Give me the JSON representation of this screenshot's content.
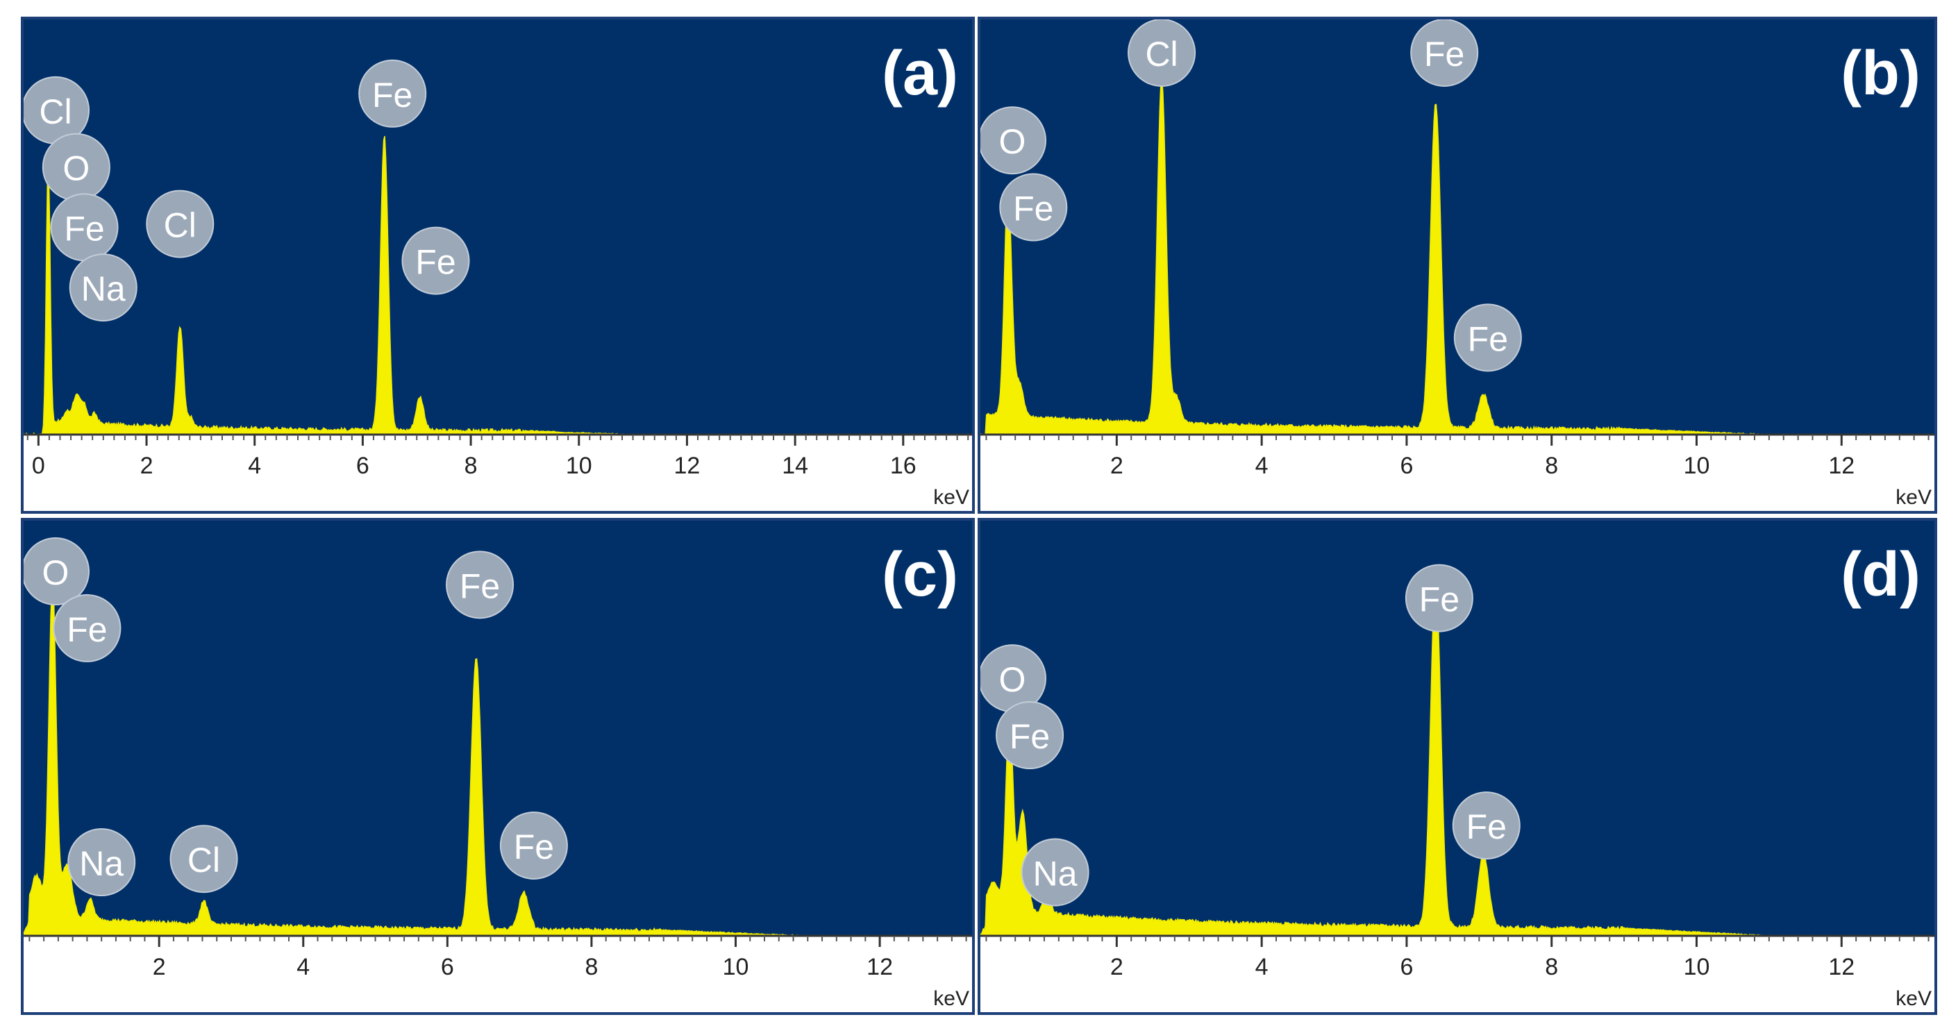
{
  "chart_data": [
    {
      "type": "area",
      "panel_label": "(a)",
      "xlabel": "keV",
      "xlim": [
        -0.3,
        17.3
      ],
      "xticks": [
        0,
        2,
        4,
        6,
        8,
        10,
        12,
        14,
        16
      ],
      "ylim": [
        0,
        100
      ],
      "baseline": 1.0,
      "peaks": [
        {
          "center": 0.18,
          "height": 82,
          "width": 0.035
        },
        {
          "center": 0.52,
          "height": 3,
          "width": 0.05
        },
        {
          "center": 0.7,
          "height": 8,
          "width": 0.07
        },
        {
          "center": 0.85,
          "height": 5,
          "width": 0.06
        },
        {
          "center": 1.04,
          "height": 3,
          "width": 0.05
        },
        {
          "center": 2.62,
          "height": 30,
          "width": 0.06
        },
        {
          "center": 2.81,
          "height": 3,
          "width": 0.05
        },
        {
          "center": 6.4,
          "height": 88,
          "width": 0.07
        },
        {
          "center": 7.06,
          "height": 10,
          "width": 0.07
        }
      ],
      "labels": [
        {
          "text": "Cl",
          "x": 0.18,
          "level": 97
        },
        {
          "text": "O",
          "x": 0.7,
          "level": 80
        },
        {
          "text": "Fe",
          "x": 0.85,
          "level": 62
        },
        {
          "text": "Na",
          "x": 1.2,
          "level": 44
        },
        {
          "text": "Cl",
          "x": 2.62,
          "level": 63
        },
        {
          "text": "Fe",
          "x": 6.55,
          "level": 102
        },
        {
          "text": "Fe",
          "x": 7.35,
          "level": 52
        }
      ]
    },
    {
      "type": "area",
      "panel_label": "(b)",
      "xlabel": "keV",
      "xlim": [
        0.1,
        13.3
      ],
      "xticks": [
        2,
        4,
        6,
        8,
        10,
        12
      ],
      "ylim": [
        0,
        100
      ],
      "baseline": 1.5,
      "peaks": [
        {
          "center": 0.5,
          "height": 68,
          "width": 0.05
        },
        {
          "center": 0.65,
          "height": 10,
          "width": 0.06
        },
        {
          "center": 2.62,
          "height": 103,
          "width": 0.06
        },
        {
          "center": 2.82,
          "height": 8,
          "width": 0.06
        },
        {
          "center": 6.4,
          "height": 97,
          "width": 0.07
        },
        {
          "center": 7.06,
          "height": 10,
          "width": 0.07
        }
      ],
      "labels": [
        {
          "text": "O",
          "x": 0.45,
          "level": 88
        },
        {
          "text": "Fe",
          "x": 0.85,
          "level": 68
        },
        {
          "text": "Cl",
          "x": 2.62,
          "level": 128
        },
        {
          "text": "Fe",
          "x": 6.52,
          "level": 118
        },
        {
          "text": "Fe",
          "x": 7.12,
          "level": 29
        }
      ]
    },
    {
      "type": "area",
      "panel_label": "(c)",
      "xlabel": "keV",
      "xlim": [
        0.1,
        13.3
      ],
      "xticks": [
        2,
        4,
        6,
        8,
        10,
        12
      ],
      "ylim": [
        0,
        100
      ],
      "baseline": 1.5,
      "peaks": [
        {
          "center": 0.52,
          "height": 100,
          "width": 0.05
        },
        {
          "center": 0.72,
          "height": 16,
          "width": 0.07
        },
        {
          "center": 0.3,
          "height": 12,
          "width": 0.08
        },
        {
          "center": 1.04,
          "height": 6,
          "width": 0.05
        },
        {
          "center": 2.62,
          "height": 7,
          "width": 0.05
        },
        {
          "center": 6.4,
          "height": 81,
          "width": 0.07
        },
        {
          "center": 7.06,
          "height": 11,
          "width": 0.07
        }
      ],
      "labels": [
        {
          "text": "O",
          "x": 0.45,
          "level": 109
        },
        {
          "text": "Fe",
          "x": 1.0,
          "level": 92
        },
        {
          "text": "Na",
          "x": 1.2,
          "level": 22
        },
        {
          "text": "Cl",
          "x": 2.62,
          "level": 23
        },
        {
          "text": "Fe",
          "x": 6.45,
          "level": 105
        },
        {
          "text": "Fe",
          "x": 7.2,
          "level": 27
        }
      ]
    },
    {
      "type": "area",
      "panel_label": "(d)",
      "xlabel": "keV",
      "xlim": [
        0.1,
        13.3
      ],
      "xticks": [
        2,
        4,
        6,
        8,
        10,
        12
      ],
      "ylim": [
        0,
        100
      ],
      "baseline": 2.0,
      "peaks": [
        {
          "center": 0.52,
          "height": 58,
          "width": 0.05
        },
        {
          "center": 0.7,
          "height": 30,
          "width": 0.06
        },
        {
          "center": 0.3,
          "height": 8,
          "width": 0.08
        },
        {
          "center": 1.04,
          "height": 6,
          "width": 0.05
        },
        {
          "center": 6.4,
          "height": 104,
          "width": 0.07
        },
        {
          "center": 7.06,
          "height": 22,
          "width": 0.07
        }
      ],
      "labels": [
        {
          "text": "O",
          "x": 0.45,
          "level": 77
        },
        {
          "text": "Fe",
          "x": 0.8,
          "level": 60
        },
        {
          "text": "Na",
          "x": 1.15,
          "level": 19
        },
        {
          "text": "Fe",
          "x": 6.45,
          "level": 101
        },
        {
          "text": "Fe",
          "x": 7.1,
          "level": 33
        }
      ]
    }
  ]
}
